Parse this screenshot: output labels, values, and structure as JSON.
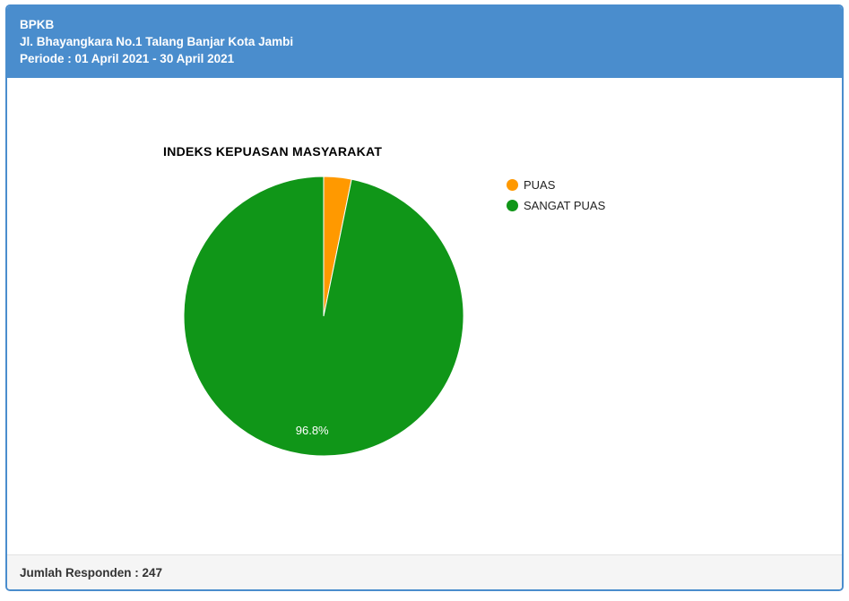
{
  "header": {
    "title": "BPKB",
    "address": "Jl. Bhayangkara No.1 Talang Banjar Kota Jambi",
    "period": "Periode : 01 April 2021 - 30 April 2021"
  },
  "chart_data": {
    "type": "pie",
    "title": "INDEKS KEPUASAN MASYARAKAT",
    "legend_position": "right",
    "start_angle_deg": 0,
    "slice_border_color": "#ffffff",
    "label_color": "#ffffff",
    "label_font_size": 13,
    "slices": [
      {
        "name": "PUAS",
        "value": 3.2,
        "color": "#ff9900",
        "label": ""
      },
      {
        "name": "SANGAT PUAS",
        "value": 96.8,
        "color": "#109618",
        "label": "96.8%"
      }
    ]
  },
  "footer": {
    "respondents_label": "Jumlah Responden : 247"
  },
  "colors": {
    "header_bg": "#4a8dcd",
    "card_border": "#4a8dcd",
    "footer_bg": "#f5f5f5",
    "puas_orange": "#ff9900",
    "sangat_puas_green": "#109618"
  }
}
